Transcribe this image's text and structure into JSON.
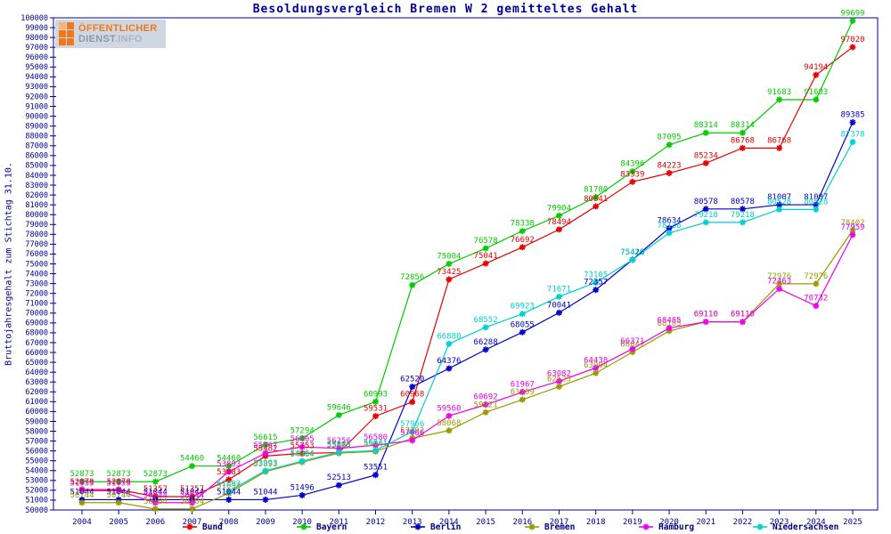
{
  "window": {
    "title": "Besoldungsvergleich Bremen W 2 gemitteltes Gehalt"
  },
  "logo": {
    "line1": "ÖFFENTLICHER",
    "line2_strong": "DIENST",
    "line2_light": ".INFO"
  },
  "chart_data": {
    "type": "line",
    "title": "Besoldungsvergleich Bremen W 2 gemitteltes Gehalt",
    "ylabel": "Bruttojahresgehalt zum Stichtag 31.10.",
    "xlabel": "",
    "ylim": [
      50000,
      100000
    ],
    "ytick_step": 1000,
    "grid": false,
    "legend_position": "bottom",
    "axis_color": "#000099",
    "legend_text_color": "#000080",
    "point_labels": true,
    "x_years": [
      2004,
      2005,
      2006,
      2007,
      2008,
      2009,
      2010,
      2011,
      2012,
      2013,
      2014,
      2015,
      2016,
      2017,
      2018,
      2019,
      2020,
      2021,
      2022,
      2023,
      2024,
      2025
    ],
    "series": [
      {
        "name": "Bund",
        "color": "#e80000",
        "values": [
          52070,
          52070,
          51357,
          51357,
          53083,
          55482,
          55753,
          55825,
          59531,
          60968,
          73425,
          75041,
          76692,
          78494,
          80841,
          83339,
          84223,
          85234,
          86768,
          86768,
          94194,
          97020
        ]
      },
      {
        "name": "Bayern",
        "color": "#00cc00",
        "values": [
          52873,
          52873,
          52873,
          54460,
          54460,
          56615,
          57294,
          59646,
          60993,
          72856,
          75004,
          76578,
          78338,
          79904,
          81780,
          84396,
          87095,
          88314,
          88314,
          91683,
          91683,
          99699
        ]
      },
      {
        "name": "Berlin",
        "color": "#0000cc",
        "values": [
          51044,
          51044,
          51044,
          51044,
          51044,
          51044,
          51496,
          52513,
          53551,
          62520,
          64376,
          66288,
          68055,
          70041,
          72357,
          75428,
          78634,
          80578,
          80578,
          81007,
          81007,
          89385
        ]
      },
      {
        "name": "Bremen",
        "color": "#9a9a00",
        "values": [
          50744,
          50744,
          50104,
          50104,
          51693,
          53893,
          54864,
          55765,
          55941,
          57292,
          58068,
          59921,
          61209,
          62525,
          63904,
          66041,
          68185,
          69110,
          69110,
          72976,
          72976,
          78402
        ]
      },
      {
        "name": "Hamburg",
        "color": "#ee00ee",
        "values": [
          51953,
          51953,
          50744,
          50744,
          53893,
          55767,
          56405,
          56256,
          56580,
          57066,
          59560,
          60692,
          61967,
          63082,
          64438,
          66371,
          68485,
          69110,
          69110,
          72463,
          70732,
          77959
        ]
      },
      {
        "name": "Niedersachsen",
        "color": "#00d0d0",
        "values": [
          null,
          null,
          null,
          null,
          51892,
          53993,
          54964,
          55865,
          56041,
          57966,
          66880,
          68552,
          69923,
          71671,
          73105,
          75419,
          78136,
          79218,
          79218,
          80528,
          80528,
          87378
        ]
      }
    ]
  }
}
